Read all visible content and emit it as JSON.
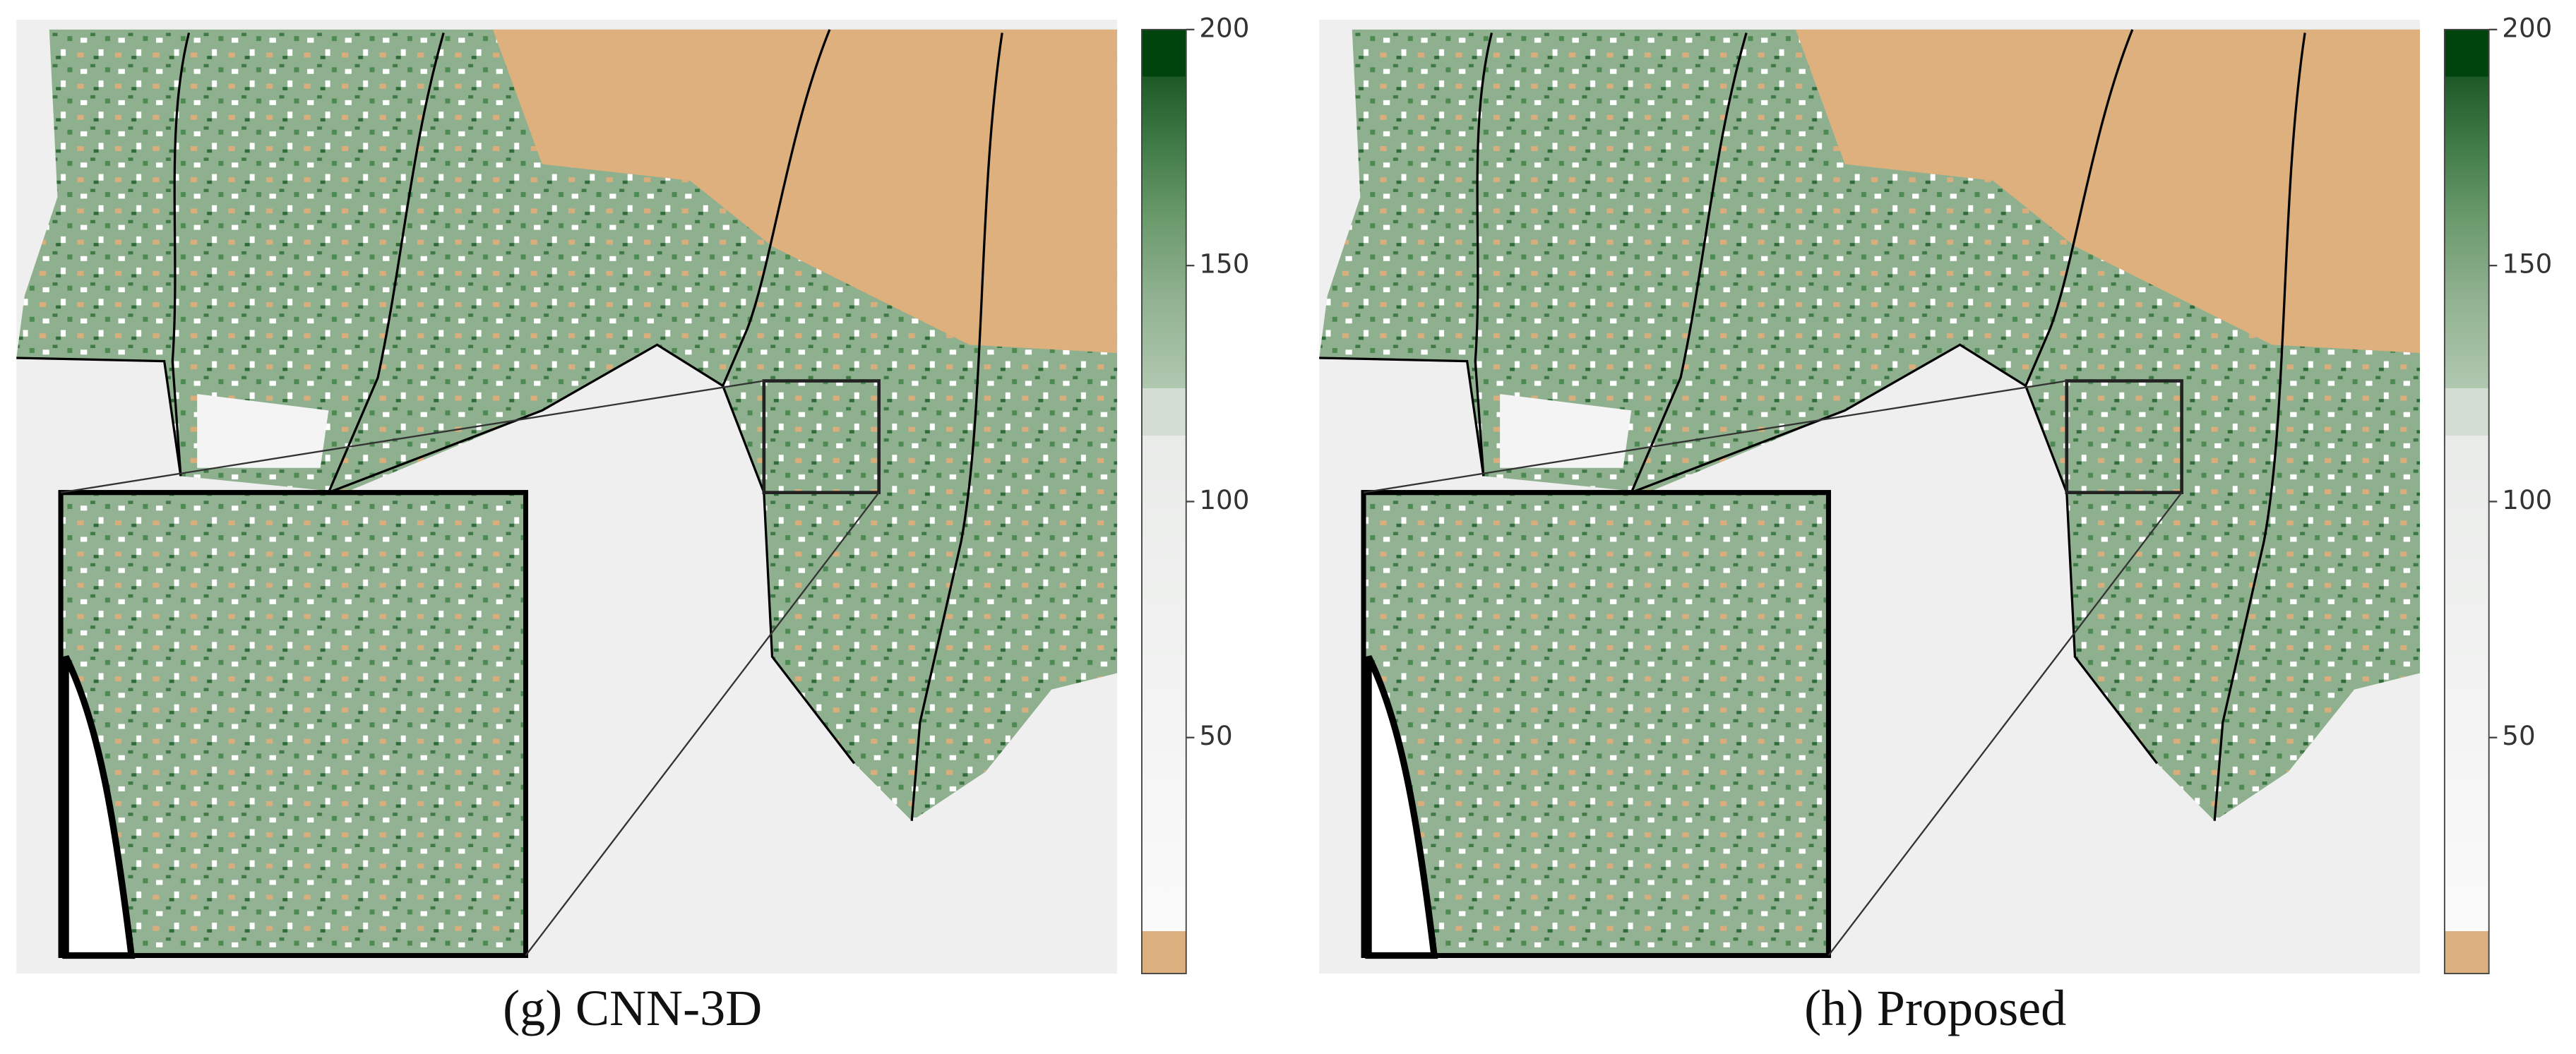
{
  "panels": [
    {
      "label": "(g)",
      "caption": "CNN-3D",
      "colorbar": {
        "range": [
          0,
          200
        ],
        "ticks": [
          50,
          100,
          150,
          200
        ]
      }
    },
    {
      "label": "(h)",
      "caption": "Proposed",
      "colorbar": {
        "range": [
          0,
          200
        ],
        "ticks": [
          50,
          100,
          150,
          200
        ]
      }
    }
  ]
}
